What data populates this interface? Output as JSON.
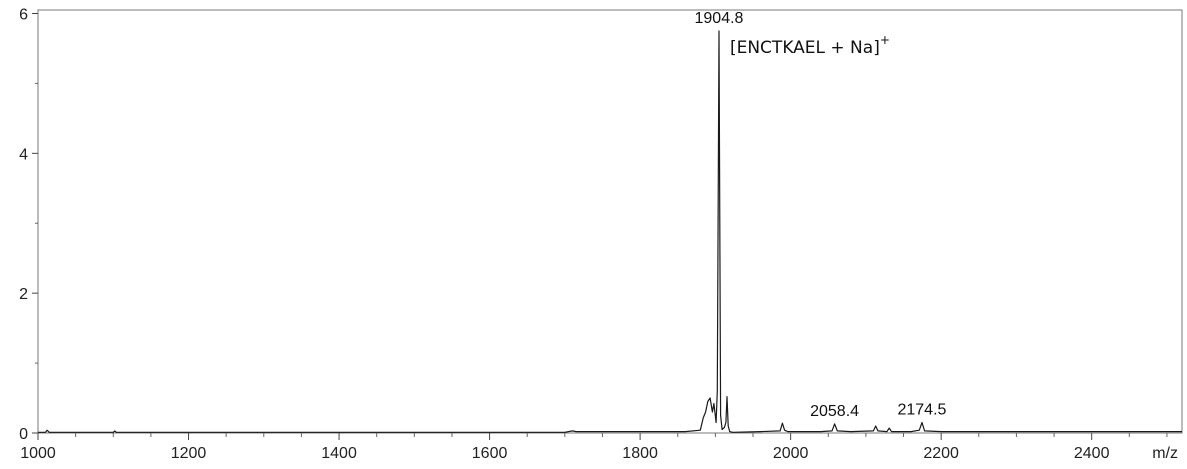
{
  "chart_data": {
    "type": "line",
    "title": "",
    "xlabel": "m/z",
    "ylabel": "",
    "xlim": [
      1000,
      2520
    ],
    "ylim": [
      0,
      6.05
    ],
    "x_ticks": [
      1000,
      1200,
      1400,
      1600,
      1800,
      2000,
      2200,
      2400
    ],
    "x_tick_labels": [
      "1000",
      "1200",
      "1400",
      "1600",
      "1800",
      "2000",
      "2200",
      "2400"
    ],
    "y_ticks": [
      0,
      2,
      4,
      6
    ],
    "y_tick_labels": [
      "0",
      "2",
      "4",
      "6"
    ],
    "grid": false,
    "legend": "none",
    "line_color": "#1a1a1a",
    "series": [
      {
        "x": [
          1000,
          1010,
          1012,
          1015,
          1100,
          1102,
          1104,
          1300,
          1500,
          1700,
          1710,
          1715,
          1800,
          1860,
          1880,
          1884,
          1887,
          1890,
          1893,
          1896,
          1898,
          1901,
          1902.5,
          1904.8,
          1907,
          1909,
          1912,
          1914,
          1915.5,
          1917,
          1919,
          1923,
          1960,
          1986,
          1989,
          1992,
          1996,
          2010,
          2040,
          2055,
          2058.4,
          2062,
          2080,
          2110,
          2113,
          2116,
          2128,
          2131,
          2134,
          2160,
          2171,
          2174.5,
          2178,
          2200,
          2300,
          2400,
          2520
        ],
        "y": [
          0.01,
          0.01,
          0.04,
          0.01,
          0.01,
          0.03,
          0.01,
          0.01,
          0.01,
          0.01,
          0.03,
          0.02,
          0.02,
          0.02,
          0.04,
          0.22,
          0.3,
          0.45,
          0.5,
          0.3,
          0.42,
          0.15,
          0.6,
          5.75,
          0.25,
          0.05,
          0.08,
          0.15,
          0.52,
          0.1,
          0.02,
          0.01,
          0.02,
          0.03,
          0.14,
          0.04,
          0.02,
          0.02,
          0.02,
          0.03,
          0.13,
          0.03,
          0.02,
          0.03,
          0.1,
          0.03,
          0.02,
          0.07,
          0.02,
          0.02,
          0.04,
          0.15,
          0.03,
          0.02,
          0.02,
          0.02,
          0.02
        ]
      }
    ],
    "annotations": [
      {
        "text": "1904.8",
        "x": 1904.8,
        "y": 5.75
      },
      {
        "text": "2058.4",
        "x": 2058.4,
        "y": 0.13
      },
      {
        "text": "2174.5",
        "x": 2174.5,
        "y": 0.15
      }
    ],
    "ion_label": {
      "text": "[ENCTKAEL + Na]",
      "superscript": "+"
    }
  }
}
